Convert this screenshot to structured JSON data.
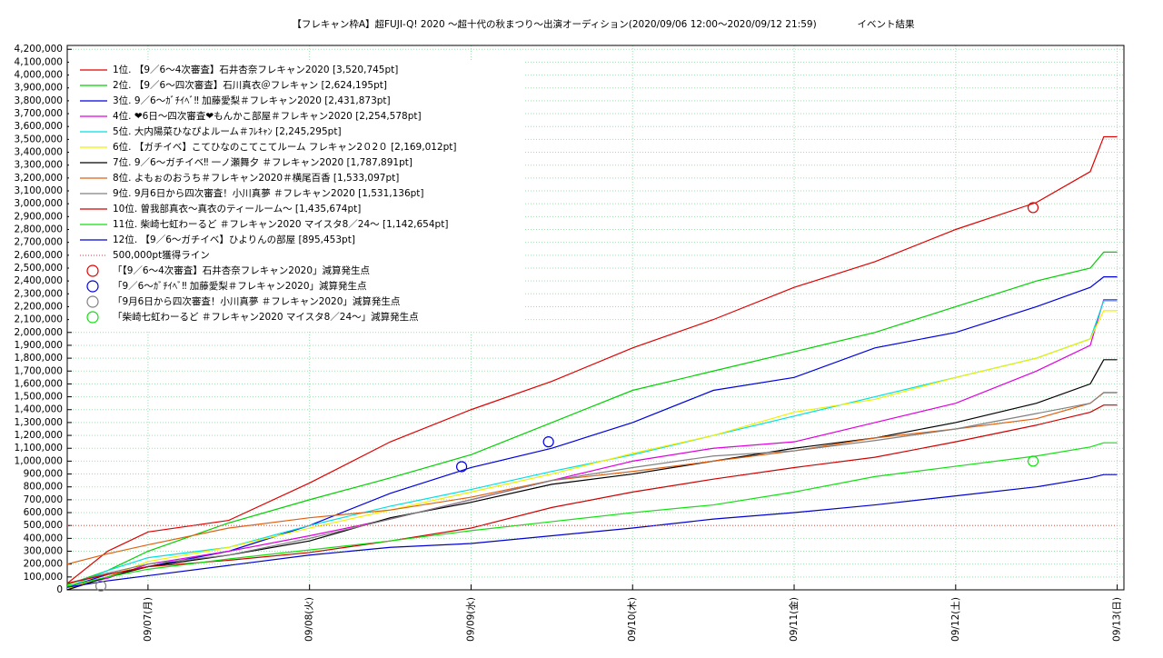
{
  "chart_data": {
    "type": "line",
    "title": "【フレキャン枠A】超FUJI-Q! 2020 〜超十代の秋まつり〜出演オーディション(2020/09/06 12:00〜2020/09/12 21:59)",
    "subtitle": "イベント結果",
    "x": [
      0,
      6,
      12,
      24,
      36,
      48,
      60,
      72,
      84,
      96,
      108,
      120,
      132,
      144,
      152,
      154,
      156
    ],
    "xlim": [
      0,
      157
    ],
    "xticks": [
      {
        "value": 12,
        "label": "09/07(月)"
      },
      {
        "value": 36,
        "label": "09/08(火)"
      },
      {
        "value": 60,
        "label": "09/09(水)"
      },
      {
        "value": 84,
        "label": "09/10(木)"
      },
      {
        "value": 108,
        "label": "09/11(金)"
      },
      {
        "value": 132,
        "label": "09/12(土)"
      },
      {
        "value": 156,
        "label": "09/13(日)"
      }
    ],
    "ylim": [
      0,
      4230000
    ],
    "yticks": [
      0,
      {
        "value": 100000,
        "label": "100,000"
      },
      {
        "value": 200000,
        "label": "200,000"
      },
      {
        "value": 300000,
        "label": "300,000"
      },
      {
        "value": 400000,
        "label": "400,000"
      },
      {
        "value": 500000,
        "label": "500,000"
      },
      {
        "value": 600000,
        "label": "600,000"
      },
      {
        "value": 700000,
        "label": "700,000"
      },
      {
        "value": 800000,
        "label": "800,000"
      },
      {
        "value": 900000,
        "label": "900,000"
      },
      {
        "value": 1000000,
        "label": "1,000,000"
      },
      {
        "value": 1100000,
        "label": "1,100,000"
      },
      {
        "value": 1200000,
        "label": "1,200,000"
      },
      {
        "value": 1300000,
        "label": "1,300,000"
      },
      {
        "value": 1400000,
        "label": "1,400,000"
      },
      {
        "value": 1500000,
        "label": "1,500,000"
      },
      {
        "value": 1600000,
        "label": "1,600,000"
      },
      {
        "value": 1700000,
        "label": "1,700,000"
      },
      {
        "value": 1800000,
        "label": "1,800,000"
      },
      {
        "value": 1900000,
        "label": "1,900,000"
      },
      {
        "value": 2000000,
        "label": "2,000,000"
      },
      {
        "value": 2100000,
        "label": "2,100,000"
      },
      {
        "value": 2200000,
        "label": "2,200,000"
      },
      {
        "value": 2300000,
        "label": "2,300,000"
      },
      {
        "value": 2400000,
        "label": "2,400,000"
      },
      {
        "value": 2500000,
        "label": "2,500,000"
      },
      {
        "value": 2600000,
        "label": "2,600,000"
      },
      {
        "value": 2700000,
        "label": "2,700,000"
      },
      {
        "value": 2800000,
        "label": "2,800,000"
      },
      {
        "value": 2900000,
        "label": "2,900,000"
      },
      {
        "value": 3000000,
        "label": "3,000,000"
      },
      {
        "value": 3100000,
        "label": "3,100,000"
      },
      {
        "value": 3200000,
        "label": "3,200,000"
      },
      {
        "value": 3300000,
        "label": "3,300,000"
      },
      {
        "value": 3400000,
        "label": "3,400,000"
      },
      {
        "value": 3500000,
        "label": "3,500,000"
      },
      {
        "value": 3600000,
        "label": "3,600,000"
      },
      {
        "value": 3700000,
        "label": "3,700,000"
      },
      {
        "value": 3800000,
        "label": "3,800,000"
      },
      {
        "value": 3900000,
        "label": "3,900,000"
      },
      {
        "value": 4000000,
        "label": "4,000,000"
      },
      {
        "value": 4100000,
        "label": "4,100,000"
      },
      {
        "value": 4200000,
        "label": "4,200,000"
      }
    ],
    "grid": true,
    "legend": "upper left",
    "series": [
      {
        "name": "1位. 【9／6〜4次審査】石井杏奈フレキャン2020 [3,520,745pt]",
        "color": "#e00000",
        "values": [
          50000,
          300000,
          450000,
          540000,
          830000,
          1150000,
          1400000,
          1620000,
          1880000,
          2100000,
          2350000,
          2550000,
          2800000,
          3010000,
          3250000,
          3520745,
          3520745
        ]
      },
      {
        "name": "2位. 【9／6〜四次審査】石川真衣＠フレキャン [2,624,195pt]",
        "color": "#00d000",
        "values": [
          40000,
          150000,
          300000,
          520000,
          700000,
          870000,
          1050000,
          1300000,
          1550000,
          1700000,
          1850000,
          2000000,
          2200000,
          2400000,
          2500000,
          2624195,
          2624195
        ]
      },
      {
        "name": "3位. 9／6〜ｶﾞﾁｲﾍﾞ‼ 加藤愛梨＃フレキャン2020 [2,431,873pt]",
        "color": "#0000e0",
        "values": [
          20000,
          120000,
          180000,
          300000,
          500000,
          750000,
          950000,
          1100000,
          1300000,
          1550000,
          1650000,
          1880000,
          2000000,
          2200000,
          2350000,
          2431873,
          2431873
        ]
      },
      {
        "name": "4位. ❤6日〜四次審査❤もんかこ部屋＃フレキャン2020 [2,254,578pt]",
        "color": "#e000e0",
        "values": [
          30000,
          90000,
          200000,
          300000,
          420000,
          550000,
          700000,
          850000,
          1000000,
          1100000,
          1150000,
          1300000,
          1450000,
          1700000,
          1900000,
          2254578,
          2254578
        ]
      },
      {
        "name": "5位. 大内陽菜ひなぴよルーム＃ﾌﾚｷｬﾝ [2,245,295pt]",
        "color": "#00e0e0",
        "values": [
          20000,
          150000,
          250000,
          330000,
          500000,
          650000,
          780000,
          920000,
          1050000,
          1200000,
          1350000,
          1500000,
          1650000,
          1800000,
          1950000,
          2245295,
          2245295
        ]
      },
      {
        "name": "6位. 【ガチイベ】こてひなのこてこてルーム フレキャン2０2０ [2,169,012pt]",
        "color": "#f0f000",
        "values": [
          10000,
          100000,
          220000,
          330000,
          480000,
          620000,
          760000,
          900000,
          1060000,
          1200000,
          1380000,
          1480000,
          1650000,
          1800000,
          1950000,
          2169012,
          2169012
        ]
      },
      {
        "name": "7位. 9／6〜ガチイベ‼ 一ノ瀬舞夕 ＃フレキャン2020 [1,787,891pt]",
        "color": "#000000",
        "values": [
          0,
          100000,
          180000,
          270000,
          380000,
          560000,
          680000,
          820000,
          900000,
          1000000,
          1100000,
          1180000,
          1300000,
          1450000,
          1600000,
          1787891,
          1787891
        ]
      },
      {
        "name": "8位. よもぉのおうち＃フレキャン2020＃横尾百香 [1,533,097pt]",
        "color": "#e06010",
        "values": [
          200000,
          280000,
          350000,
          480000,
          560000,
          620000,
          720000,
          850000,
          920000,
          1000000,
          1080000,
          1180000,
          1250000,
          1330000,
          1450000,
          1533097,
          1533097
        ]
      },
      {
        "name": "9位. 9月6日から四次審査！小川真夢 ＃フレキャン2020 [1,531,136pt]",
        "color": "#808080",
        "values": [
          50000,
          130000,
          200000,
          270000,
          400000,
          550000,
          700000,
          850000,
          950000,
          1040000,
          1080000,
          1160000,
          1250000,
          1370000,
          1450000,
          1531136,
          1531136
        ]
      },
      {
        "name": "10位. 曽我部真衣〜真衣のティールーム〜 [1,435,674pt]",
        "color": "#d00000",
        "values": [
          50000,
          120000,
          180000,
          230000,
          290000,
          380000,
          480000,
          640000,
          760000,
          860000,
          950000,
          1030000,
          1150000,
          1280000,
          1380000,
          1435674,
          1435674
        ]
      },
      {
        "name": "11位. 柴崎七虹わーるど ＃フレキャン2020 マイスタ8／24〜 [1,142,654pt]",
        "color": "#10e010",
        "values": [
          30000,
          100000,
          160000,
          240000,
          310000,
          380000,
          460000,
          530000,
          600000,
          660000,
          760000,
          880000,
          960000,
          1040000,
          1110000,
          1142654,
          1142654
        ]
      },
      {
        "name": "12位. 【9／6〜ガチイベ】ひよりんの部屋 [895,453pt]",
        "color": "#0000d0",
        "values": [
          20000,
          70000,
          110000,
          190000,
          270000,
          330000,
          360000,
          420000,
          480000,
          550000,
          600000,
          660000,
          730000,
          800000,
          870000,
          895453,
          895453
        ]
      },
      {
        "name": "500,000pt獲得ライン",
        "color": "#e06060",
        "dashed": true,
        "values": [
          500000,
          500000,
          500000,
          500000,
          500000,
          500000,
          500000,
          500000,
          500000,
          500000,
          500000,
          500000,
          500000,
          500000,
          500000,
          500000,
          500000
        ]
      }
    ],
    "markers": [
      {
        "name": "「【9／6〜4次審査】石井杏奈フレキャン2020」減算発生点",
        "color": "#e00000",
        "points": [
          {
            "x": 143.5,
            "y": 2970000
          }
        ]
      },
      {
        "name": "「9／6〜ｶﾞﾁｲﾍﾞ‼ 加藤愛梨＃フレキャン2020」減算発生点",
        "color": "#0000e0",
        "points": [
          {
            "x": 58.6,
            "y": 957000
          },
          {
            "x": 71.5,
            "y": 1150000
          }
        ]
      },
      {
        "name": "「9月6日から四次審査！小川真夢 ＃フレキャン2020」減算発生点",
        "color": "#808080",
        "points": [
          {
            "x": 5,
            "y": 30000
          }
        ]
      },
      {
        "name": "「柴崎七虹わーるど ＃フレキャン2020 マイスタ8／24〜」減算発生点",
        "color": "#10e010",
        "points": [
          {
            "x": 143.5,
            "y": 1000000
          }
        ]
      }
    ]
  }
}
